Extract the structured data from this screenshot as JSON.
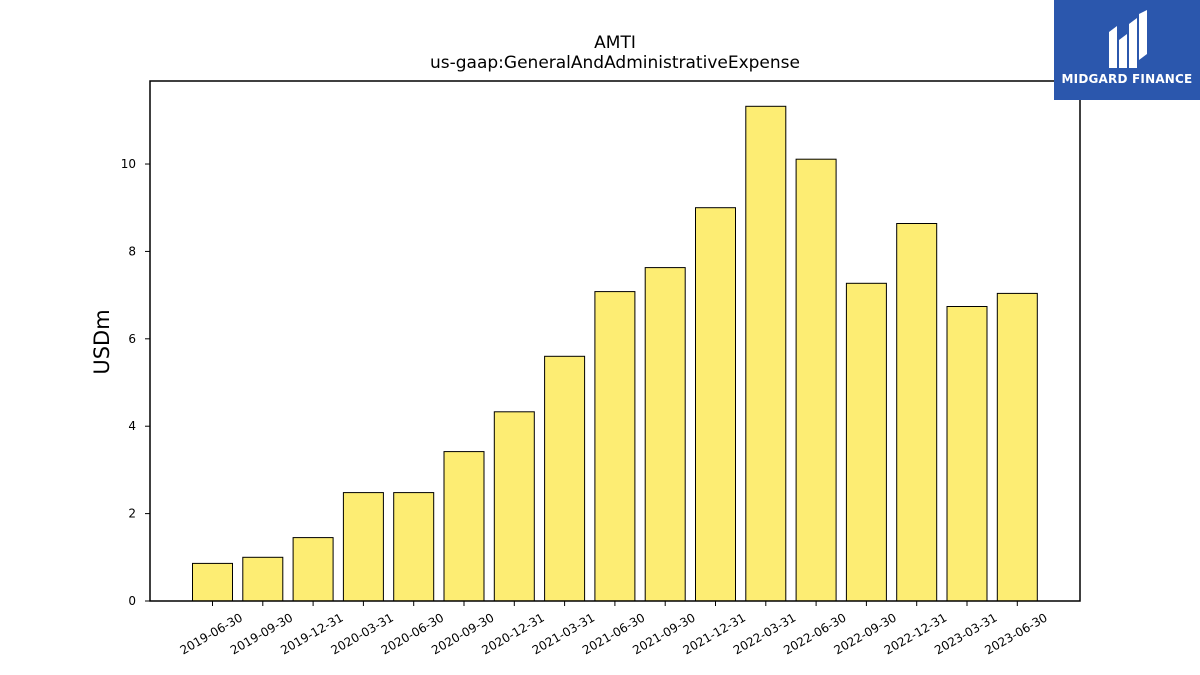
{
  "chart_data": {
    "type": "bar",
    "title": "AMTI",
    "subtitle": "us-gaap:GeneralAndAdministrativeExpense",
    "xlabel": "",
    "ylabel": "USDm",
    "categories": [
      "2019-06-30",
      "2019-09-30",
      "2019-12-31",
      "2020-03-31",
      "2020-06-30",
      "2020-09-30",
      "2020-12-31",
      "2021-03-31",
      "2021-06-30",
      "2021-09-30",
      "2021-12-31",
      "2022-03-31",
      "2022-06-30",
      "2022-09-30",
      "2022-12-31",
      "2023-03-31",
      "2023-06-30"
    ],
    "values": [
      0.86,
      1.0,
      1.45,
      2.48,
      2.48,
      3.42,
      4.33,
      5.6,
      7.08,
      7.63,
      9.0,
      11.32,
      10.11,
      7.27,
      8.64,
      6.74,
      7.04
    ],
    "ylim": [
      0,
      11.9
    ],
    "yticks": [
      0,
      2,
      4,
      6,
      8,
      10
    ],
    "grid": false,
    "bar_color": "#fded73",
    "bar_edge_color": "#000000"
  },
  "logo": {
    "text": "MIDGARD FINANCE",
    "background": "#2b57ad",
    "icon": "midgard-m-logo-icon"
  }
}
